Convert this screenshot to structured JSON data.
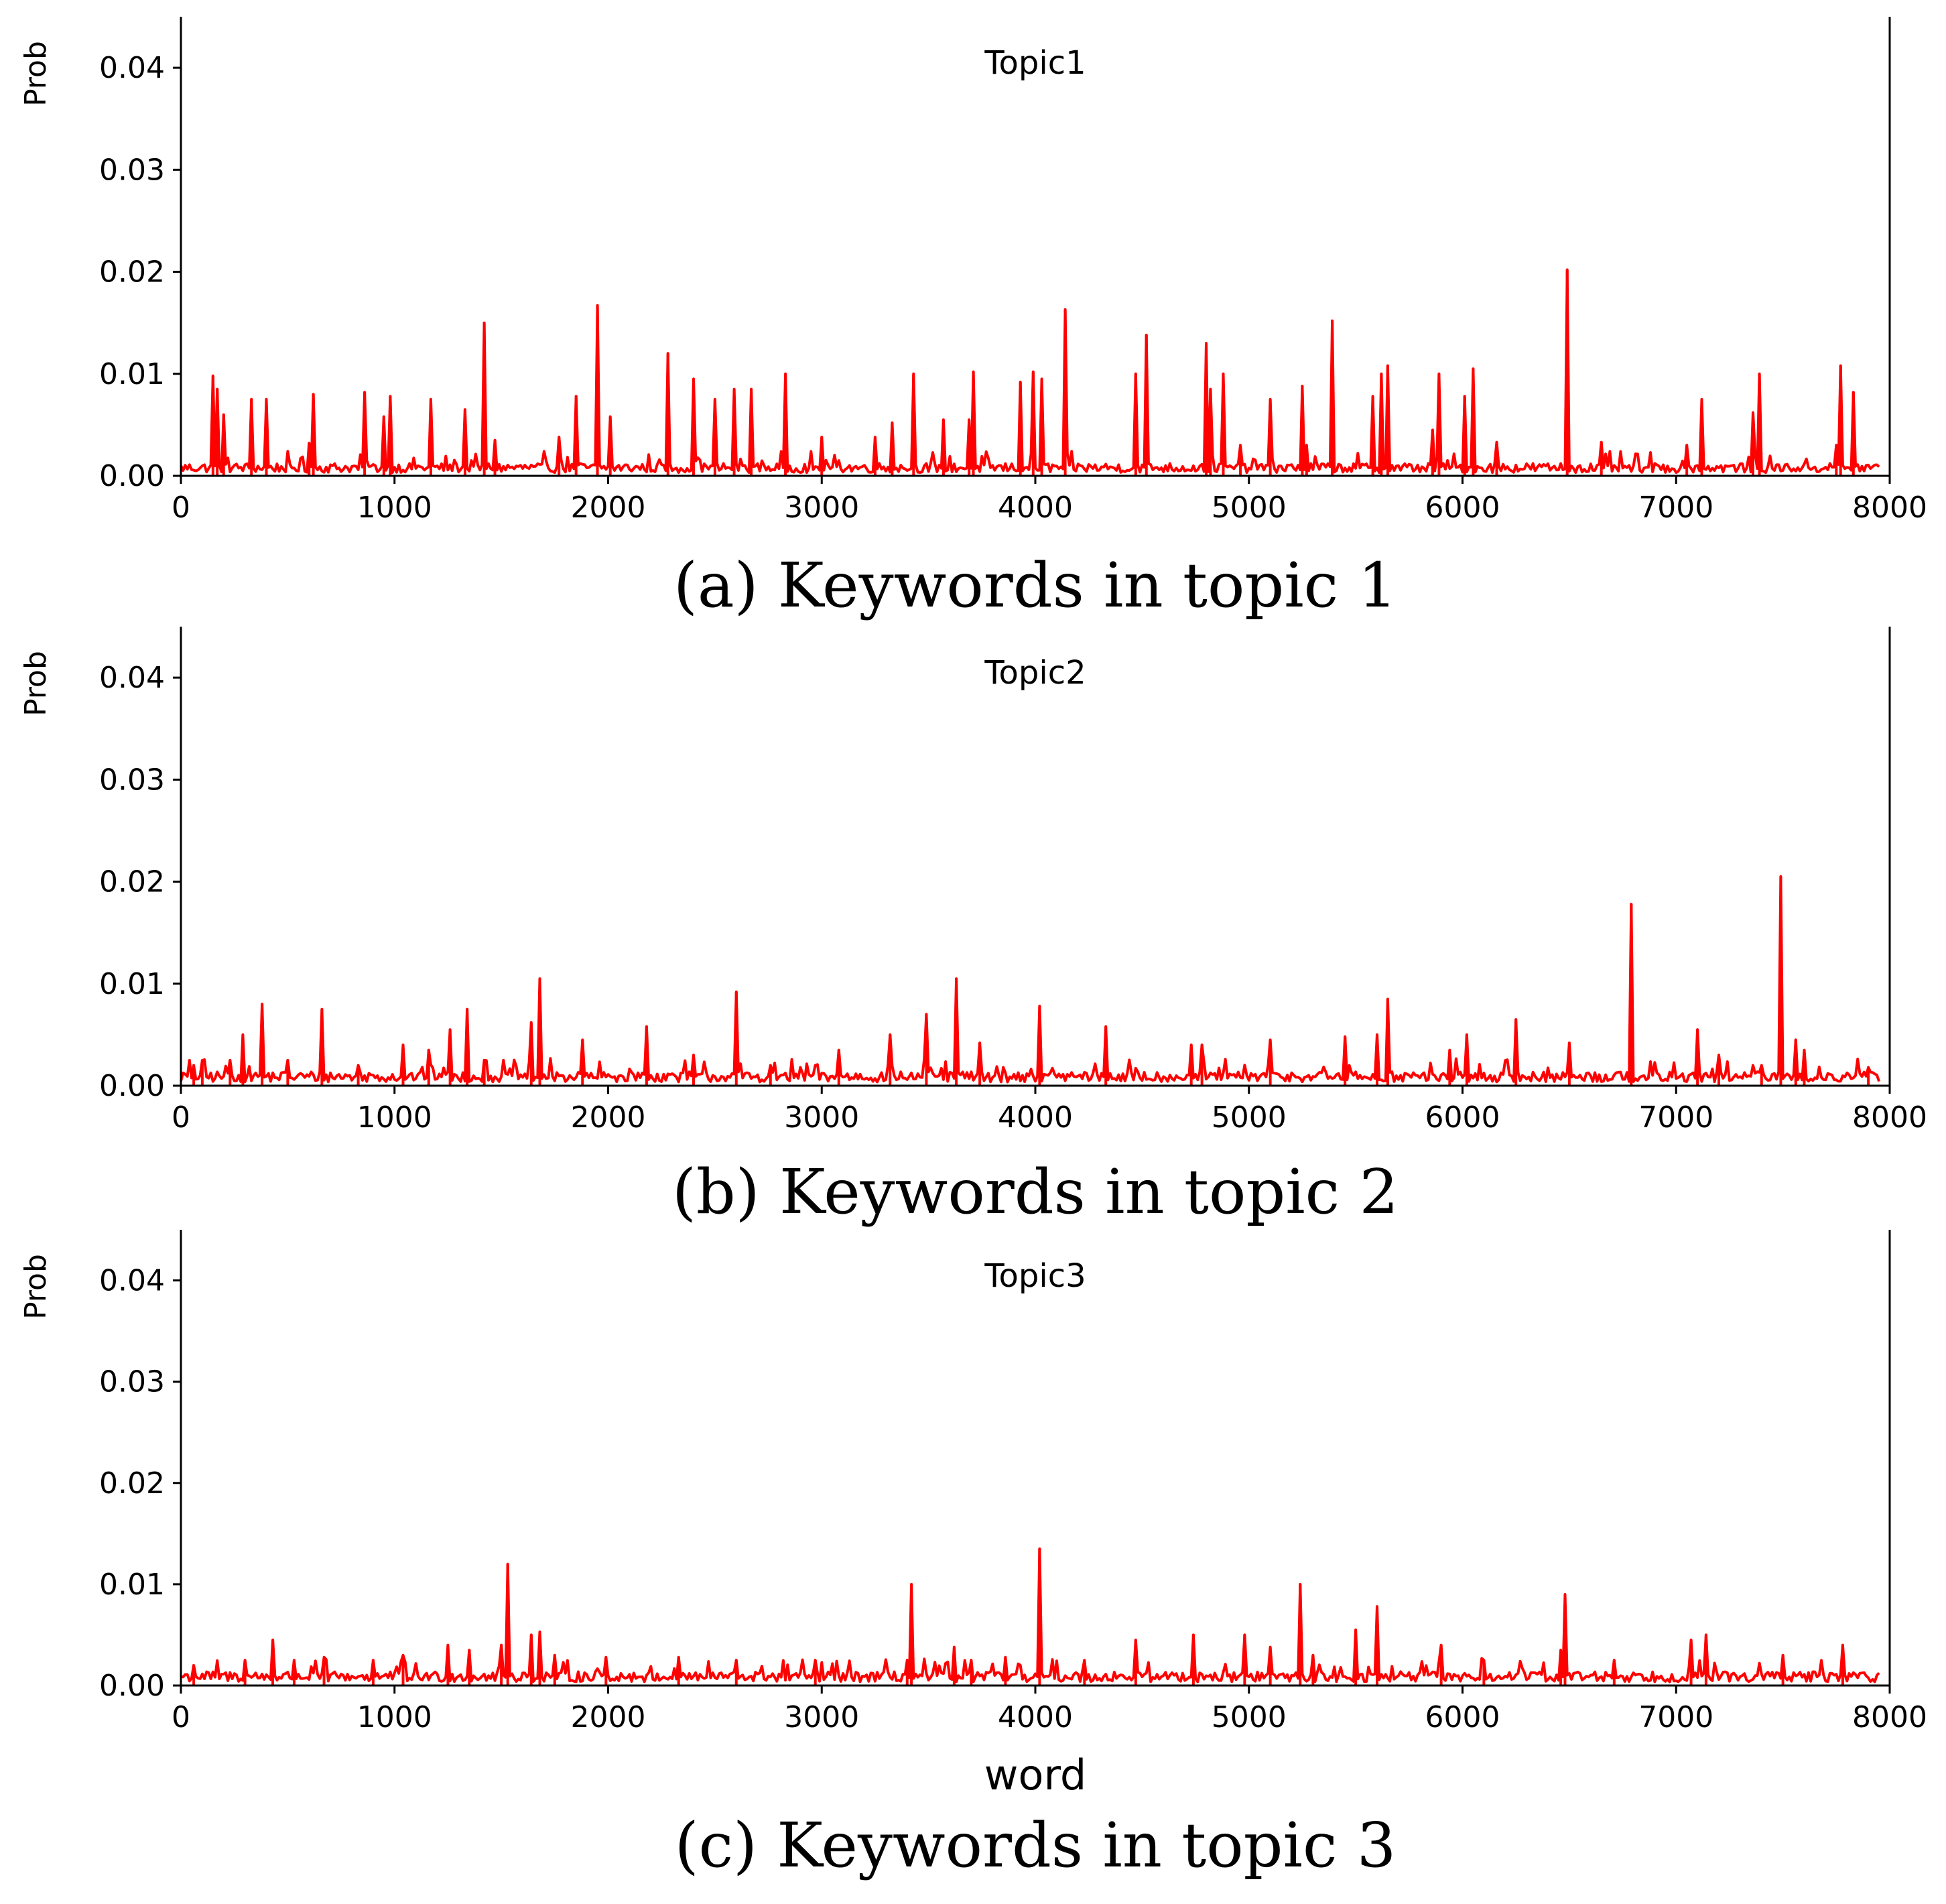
{
  "chart_data": [
    {
      "type": "line",
      "title": "Topic1",
      "ylabel": "Prob",
      "xlabel": "",
      "caption": "(a) Keywords in topic 1",
      "xlim": [
        0,
        8000
      ],
      "ylim": [
        0,
        0.045
      ],
      "xticks": [
        "0",
        "1000",
        "2000",
        "3000",
        "4000",
        "5000",
        "6000",
        "7000",
        "8000"
      ],
      "yticks": [
        "0.00",
        "0.01",
        "0.02",
        "0.03",
        "0.04"
      ],
      "color": "#ff0000",
      "baseline": 0.0008,
      "spikes": [
        [
          150,
          0.0098
        ],
        [
          170,
          0.0085
        ],
        [
          200,
          0.006
        ],
        [
          330,
          0.0075
        ],
        [
          400,
          0.0075
        ],
        [
          600,
          0.0032
        ],
        [
          620,
          0.008
        ],
        [
          860,
          0.0082
        ],
        [
          950,
          0.0058
        ],
        [
          980,
          0.0078
        ],
        [
          1170,
          0.0075
        ],
        [
          1330,
          0.0065
        ],
        [
          1420,
          0.015
        ],
        [
          1470,
          0.0035
        ],
        [
          1770,
          0.0038
        ],
        [
          1850,
          0.0078
        ],
        [
          1950,
          0.0167
        ],
        [
          2010,
          0.0058
        ],
        [
          2280,
          0.012
        ],
        [
          2400,
          0.0095
        ],
        [
          2500,
          0.0075
        ],
        [
          2590,
          0.0085
        ],
        [
          2670,
          0.0085
        ],
        [
          2830,
          0.01
        ],
        [
          3000,
          0.0038
        ],
        [
          3250,
          0.0038
        ],
        [
          3330,
          0.0052
        ],
        [
          3430,
          0.01
        ],
        [
          3570,
          0.0055
        ],
        [
          3690,
          0.0055
        ],
        [
          3710,
          0.0102
        ],
        [
          3930,
          0.0092
        ],
        [
          3990,
          0.0102
        ],
        [
          4030,
          0.0095
        ],
        [
          4140,
          0.0163
        ],
        [
          4470,
          0.01
        ],
        [
          4520,
          0.0138
        ],
        [
          4800,
          0.013
        ],
        [
          4820,
          0.0085
        ],
        [
          4880,
          0.01
        ],
        [
          4960,
          0.003
        ],
        [
          5100,
          0.0075
        ],
        [
          5250,
          0.0088
        ],
        [
          5270,
          0.003
        ],
        [
          5390,
          0.0152
        ],
        [
          5580,
          0.0078
        ],
        [
          5620,
          0.01
        ],
        [
          5650,
          0.0108
        ],
        [
          5860,
          0.0045
        ],
        [
          5890,
          0.01
        ],
        [
          6010,
          0.0078
        ],
        [
          6050,
          0.0105
        ],
        [
          6160,
          0.0033
        ],
        [
          6490,
          0.0202
        ],
        [
          6650,
          0.0033
        ],
        [
          7050,
          0.003
        ],
        [
          7120,
          0.0075
        ],
        [
          7360,
          0.0062
        ],
        [
          7390,
          0.01
        ],
        [
          7750,
          0.003
        ],
        [
          7770,
          0.0108
        ],
        [
          7830,
          0.0082
        ]
      ]
    },
    {
      "type": "line",
      "title": "Topic2",
      "ylabel": "Prob",
      "xlabel": "",
      "caption": "(b) Keywords in topic 2",
      "xlim": [
        0,
        8000
      ],
      "ylim": [
        0,
        0.045
      ],
      "xticks": [
        "0",
        "1000",
        "2000",
        "3000",
        "4000",
        "5000",
        "6000",
        "7000",
        "8000"
      ],
      "yticks": [
        "0.00",
        "0.01",
        "0.02",
        "0.03",
        "0.04"
      ],
      "color": "#ff0000",
      "baseline": 0.0009,
      "spikes": [
        [
          60,
          0.002
        ],
        [
          100,
          0.0025
        ],
        [
          230,
          0.0025
        ],
        [
          290,
          0.005
        ],
        [
          380,
          0.008
        ],
        [
          500,
          0.0025
        ],
        [
          660,
          0.0075
        ],
        [
          830,
          0.002
        ],
        [
          1040,
          0.004
        ],
        [
          1160,
          0.0035
        ],
        [
          1260,
          0.0055
        ],
        [
          1340,
          0.0075
        ],
        [
          1420,
          0.0025
        ],
        [
          1640,
          0.0062
        ],
        [
          1680,
          0.0105
        ],
        [
          1880,
          0.0045
        ],
        [
          2180,
          0.0058
        ],
        [
          2400,
          0.003
        ],
        [
          2600,
          0.0092
        ],
        [
          2760,
          0.002
        ],
        [
          3080,
          0.0035
        ],
        [
          3320,
          0.005
        ],
        [
          3490,
          0.007
        ],
        [
          3630,
          0.0105
        ],
        [
          3740,
          0.0042
        ],
        [
          4020,
          0.0078
        ],
        [
          4330,
          0.0058
        ],
        [
          4730,
          0.004
        ],
        [
          4780,
          0.004
        ],
        [
          5100,
          0.0045
        ],
        [
          5450,
          0.0048
        ],
        [
          5600,
          0.005
        ],
        [
          5650,
          0.0085
        ],
        [
          5940,
          0.0035
        ],
        [
          6020,
          0.005
        ],
        [
          6250,
          0.0065
        ],
        [
          6500,
          0.0042
        ],
        [
          6790,
          0.0178
        ],
        [
          7100,
          0.0055
        ],
        [
          7200,
          0.003
        ],
        [
          7400,
          0.002
        ],
        [
          7490,
          0.0205
        ],
        [
          7560,
          0.0045
        ],
        [
          7600,
          0.0035
        ],
        [
          7900,
          0.0018
        ]
      ]
    },
    {
      "type": "line",
      "title": "Topic3",
      "ylabel": "Prob",
      "xlabel": "word",
      "caption": "(c) Keywords in topic 3",
      "xlim": [
        0,
        8000
      ],
      "ylim": [
        0,
        0.045
      ],
      "xticks": [
        "0",
        "1000",
        "2000",
        "3000",
        "4000",
        "5000",
        "6000",
        "7000",
        "8000"
      ],
      "yticks": [
        "0.00",
        "0.01",
        "0.02",
        "0.03",
        "0.04"
      ],
      "color": "#ff0000",
      "baseline": 0.0009,
      "spikes": [
        [
          60,
          0.002
        ],
        [
          300,
          0.0025
        ],
        [
          430,
          0.0045
        ],
        [
          530,
          0.0025
        ],
        [
          670,
          0.0028
        ],
        [
          900,
          0.0025
        ],
        [
          1040,
          0.003
        ],
        [
          1250,
          0.004
        ],
        [
          1350,
          0.0035
        ],
        [
          1500,
          0.004
        ],
        [
          1530,
          0.012
        ],
        [
          1640,
          0.005
        ],
        [
          1680,
          0.0053
        ],
        [
          1750,
          0.003
        ],
        [
          1990,
          0.0028
        ],
        [
          2330,
          0.0028
        ],
        [
          2600,
          0.0025
        ],
        [
          2970,
          0.0025
        ],
        [
          3400,
          0.0025
        ],
        [
          3420,
          0.01
        ],
        [
          3620,
          0.0038
        ],
        [
          3700,
          0.0025
        ],
        [
          3860,
          0.0028
        ],
        [
          4020,
          0.0135
        ],
        [
          4230,
          0.0025
        ],
        [
          4470,
          0.0045
        ],
        [
          4740,
          0.005
        ],
        [
          4980,
          0.005
        ],
        [
          5100,
          0.0038
        ],
        [
          5240,
          0.01
        ],
        [
          5300,
          0.003
        ],
        [
          5500,
          0.0055
        ],
        [
          5600,
          0.0078
        ],
        [
          5900,
          0.004
        ],
        [
          6100,
          0.0025
        ],
        [
          6460,
          0.0035
        ],
        [
          6480,
          0.009
        ],
        [
          6710,
          0.0025
        ],
        [
          7070,
          0.0045
        ],
        [
          7140,
          0.005
        ],
        [
          7500,
          0.003
        ],
        [
          7780,
          0.004
        ]
      ]
    }
  ]
}
